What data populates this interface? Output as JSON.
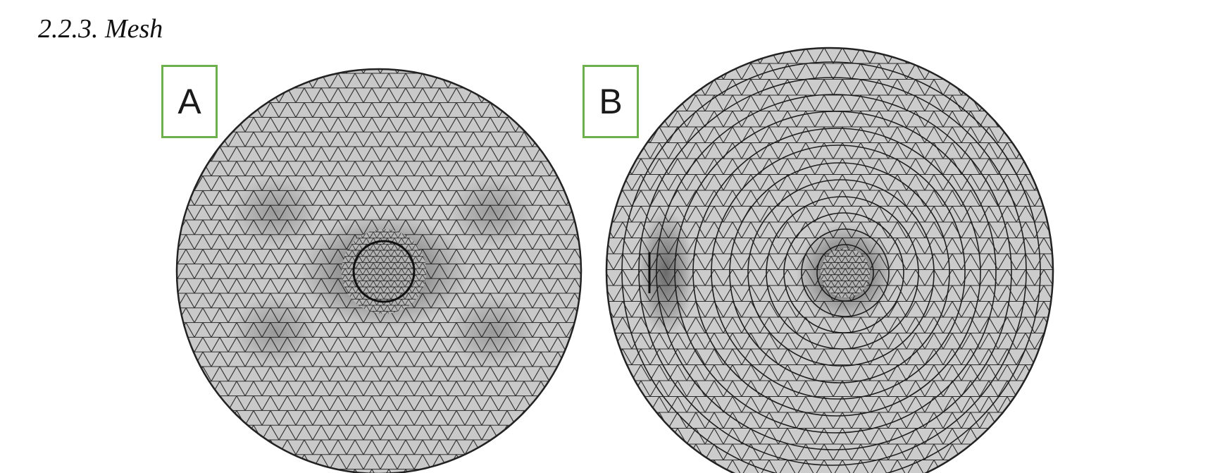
{
  "section": {
    "heading": "2.2.3. Mesh"
  },
  "figure": {
    "panels": [
      {
        "label": "A",
        "name": "mesh-a"
      },
      {
        "label": "B",
        "name": "mesh-b"
      }
    ],
    "colors": {
      "mesh_fill": "#c9c9c9",
      "mesh_line": "#1f1f1f",
      "label_border": "#6fb04e"
    }
  }
}
